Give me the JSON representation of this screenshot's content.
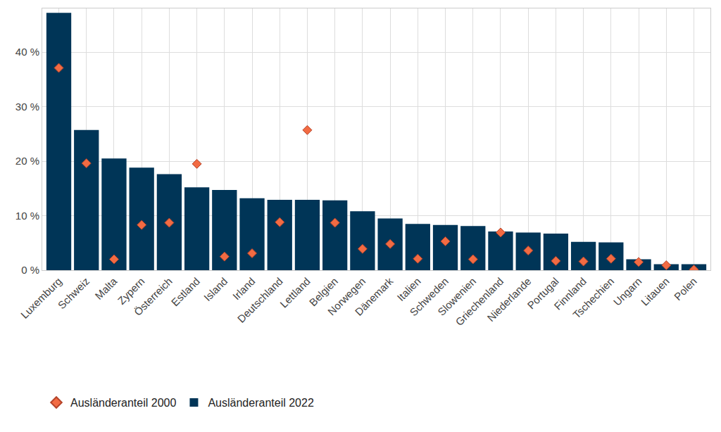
{
  "chart_data": {
    "type": "bar",
    "categories": [
      "Luxemburg",
      "Schweiz",
      "Malta",
      "Zypern",
      "Österreich",
      "Estland",
      "Island",
      "Irland",
      "Deutschland",
      "Lettland",
      "Belgien",
      "Norwegen",
      "Dänemark",
      "Italien",
      "Schweden",
      "Slowenien",
      "Griechenland",
      "Niederlande",
      "Portugal",
      "Finnland",
      "Tschechien",
      "Ungarn",
      "Litauen",
      "Polen"
    ],
    "series": [
      {
        "name": "Ausländeranteil 2000",
        "type": "scatter",
        "marker": "diamond",
        "color": "#f26b43",
        "values": [
          37.1,
          19.6,
          2.0,
          8.3,
          8.7,
          19.5,
          2.5,
          3.1,
          8.8,
          25.7,
          8.7,
          3.9,
          4.8,
          2.1,
          5.3,
          2.0,
          6.9,
          3.6,
          1.7,
          1.6,
          2.1,
          1.5,
          0.9,
          0.1
        ]
      },
      {
        "name": "Ausländeranteil 2022",
        "type": "bar",
        "color": "#003557",
        "values": [
          47.2,
          25.7,
          20.5,
          18.8,
          17.6,
          15.2,
          14.7,
          13.2,
          12.9,
          12.9,
          12.8,
          10.8,
          9.5,
          8.5,
          8.3,
          8.1,
          7.1,
          6.9,
          6.7,
          5.2,
          5.1,
          2.0,
          1.1,
          1.1
        ]
      }
    ],
    "ylim": [
      0,
      48
    ],
    "yticks": [
      {
        "value": 0,
        "label": "0 %"
      },
      {
        "value": 10,
        "label": "10 %"
      },
      {
        "value": 20,
        "label": "20 %"
      },
      {
        "value": 30,
        "label": "30 %"
      },
      {
        "value": 40,
        "label": "40 %"
      }
    ],
    "grid": true,
    "legend": "bottom"
  }
}
